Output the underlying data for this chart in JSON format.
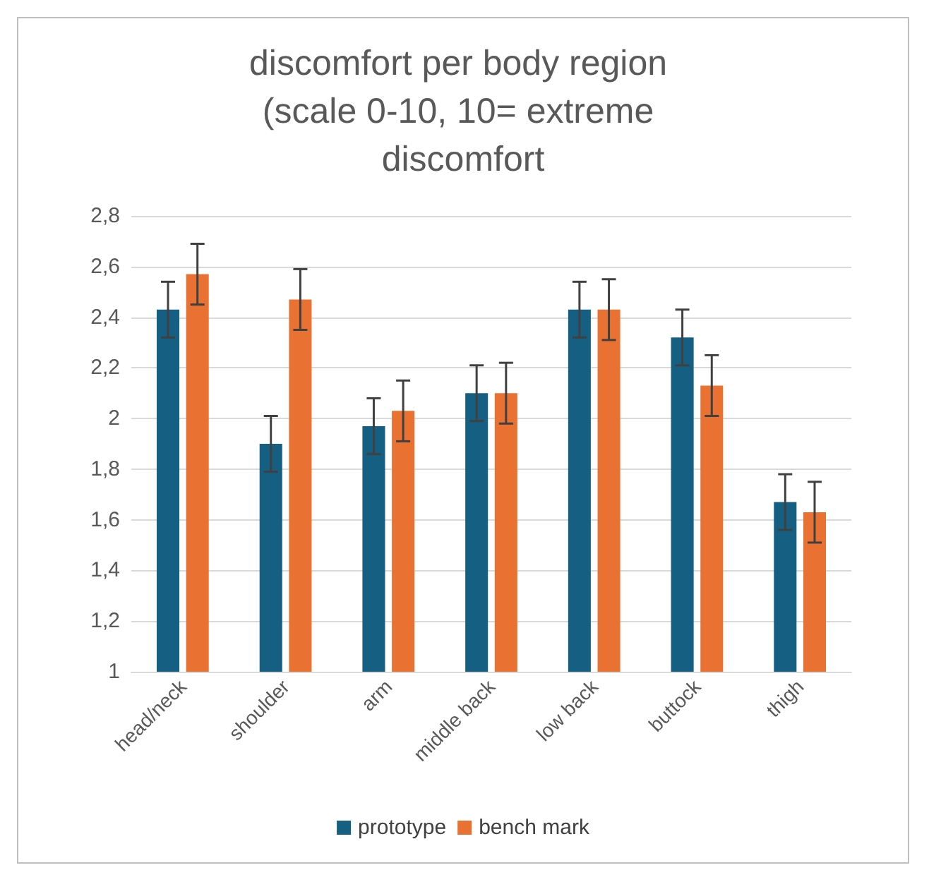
{
  "chart_data": {
    "type": "bar",
    "title": "discomfort per body region (scale 0-10, 10= extreme discomfort",
    "categories": [
      "head/neck",
      "shoulder",
      "arm",
      "middle back",
      "low back",
      "buttock",
      "thigh"
    ],
    "series": [
      {
        "name": "prototype",
        "color": "#156082",
        "values": [
          2.43,
          1.9,
          1.97,
          2.1,
          2.43,
          2.32,
          1.67
        ],
        "errors": [
          0.11,
          0.11,
          0.11,
          0.11,
          0.11,
          0.11,
          0.11
        ]
      },
      {
        "name": "bench mark",
        "color": "#e97132",
        "values": [
          2.57,
          2.47,
          2.03,
          2.1,
          2.43,
          2.13,
          1.63
        ],
        "errors": [
          0.12,
          0.12,
          0.12,
          0.12,
          0.12,
          0.12,
          0.12
        ]
      }
    ],
    "ylim": [
      1,
      2.8
    ],
    "yticks": [
      1,
      {
        "value": 1.2,
        "label": "1,2"
      },
      {
        "value": 1.4,
        "label": "1,4"
      },
      {
        "value": 1.6,
        "label": "1,6"
      },
      {
        "value": 1.8,
        "label": "1,8"
      },
      2,
      {
        "value": 2.2,
        "label": "2,2"
      },
      {
        "value": 2.4,
        "label": "2,4"
      },
      {
        "value": 2.6,
        "label": "2,6"
      },
      {
        "value": 2.8,
        "label": "2,8"
      }
    ],
    "grid": "y",
    "legend": "bottom"
  }
}
